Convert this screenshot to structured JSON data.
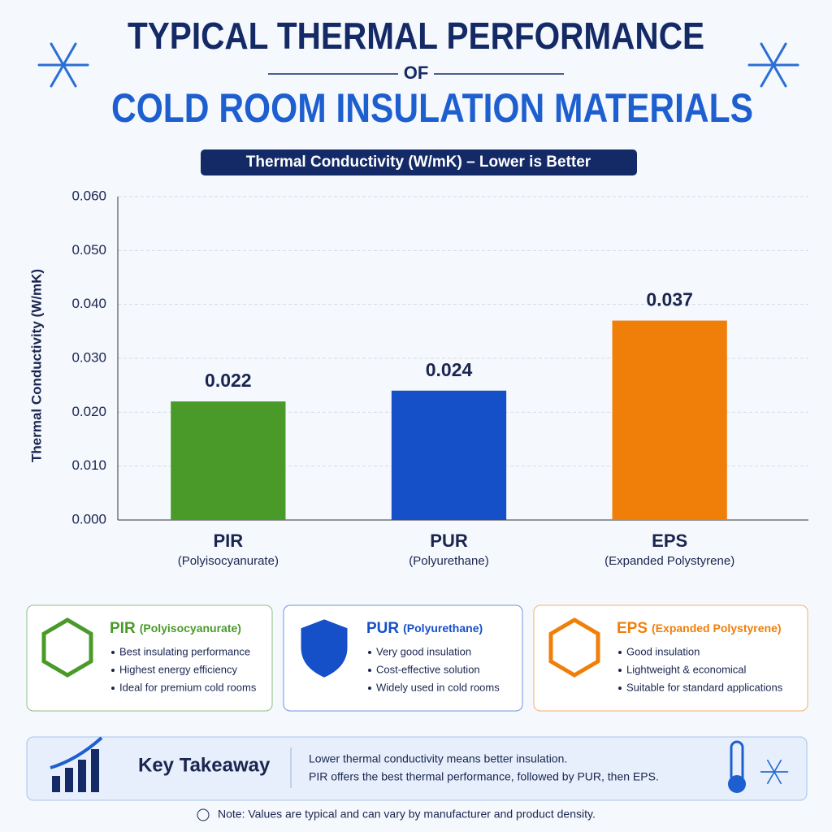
{
  "header": {
    "title_line1": "TYPICAL THERMAL PERFORMANCE",
    "title_line2": "OF",
    "title_line3": "COLD ROOM INSULATION MATERIALS"
  },
  "chart_data": {
    "type": "bar",
    "subtitle": "Thermal Conductivity (W/mK) – Lower is Better",
    "y_label": "Thermal Conductivity (W/mK)",
    "categories": [
      "PIR",
      "PUR",
      "EPS"
    ],
    "category_details": [
      "(Polyisocyanurate)",
      "(Polyurethane)",
      "(Expanded Polystyrene)"
    ],
    "values": [
      0.022,
      0.024,
      0.037
    ],
    "colors": [
      "#4a9a2a",
      "#1550c8",
      "#f07f0a"
    ],
    "ylim": [
      0,
      0.06
    ],
    "yticks": [
      {
        "value": 0,
        "label": "0.000"
      },
      {
        "value": 0.01,
        "label": "0.010"
      },
      {
        "value": 0.02,
        "label": "0.020"
      },
      {
        "value": 0.03,
        "label": "0.030"
      },
      {
        "value": 0.04,
        "label": "0.040"
      },
      {
        "value": 0.05,
        "label": "0.050"
      },
      {
        "value": 0.06,
        "label": "0.060"
      }
    ],
    "grid": true
  },
  "cards": [
    {
      "name": "PIR",
      "detail": "(Polyisocyanurate)",
      "points": [
        "Best insulating performance",
        "Highest energy efficiency",
        "Ideal for premium cold rooms"
      ]
    },
    {
      "name": "PUR",
      "detail": "(Polyurethane)",
      "points": [
        "Very good insulation",
        "Cost-effective solution",
        "Widely used in cold rooms"
      ]
    },
    {
      "name": "EPS",
      "detail": "(Expanded Polystyrene)",
      "points": [
        "Good insulation",
        "Lightweight & economical",
        "Suitable for standard applications"
      ]
    }
  ],
  "takeaway": {
    "title": "Key Takeaway",
    "lines": [
      "Lower thermal conductivity means better insulation.",
      "PIR offers the best thermal performance, followed by PUR, then EPS."
    ]
  },
  "note": "Note: Values are typical and can vary by manufacturer and product density."
}
